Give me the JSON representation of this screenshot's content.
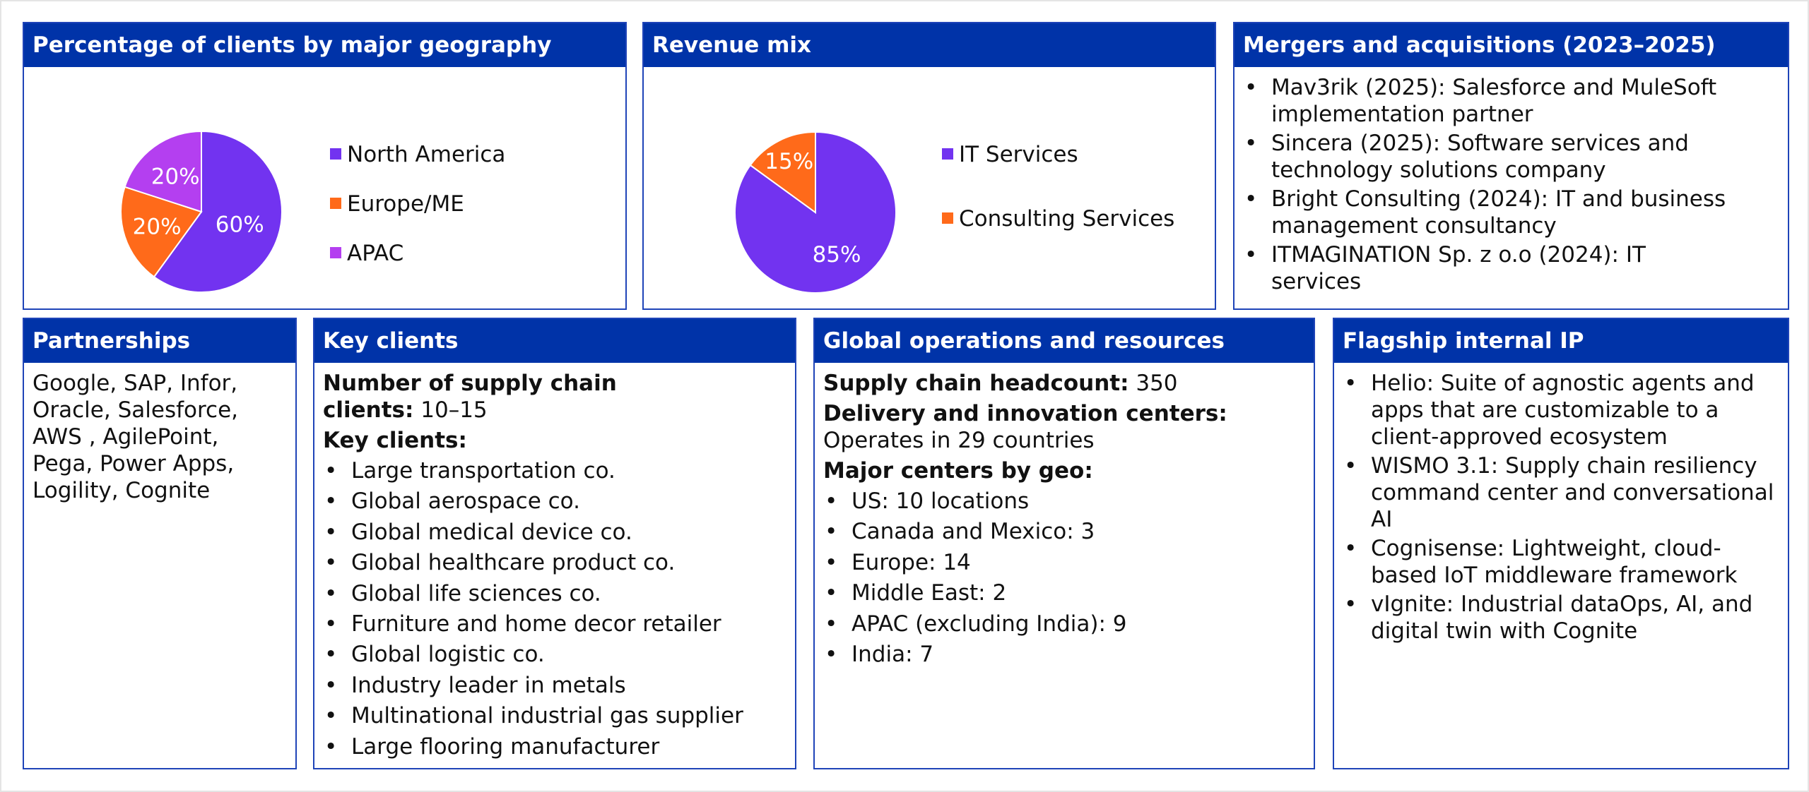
{
  "colors": {
    "header": "#0033a8",
    "border": "#1f44b8",
    "purple": "#7233f0",
    "orange": "#ff6a1a",
    "magenta": "#b43ff0"
  },
  "geography": {
    "title": "Percentage of clients by major geography",
    "legend": [
      "North America",
      "Europe/ME",
      "APAC"
    ]
  },
  "revenue": {
    "title": "Revenue mix",
    "legend": [
      "IT Services",
      "Consulting Services"
    ]
  },
  "chart_data": [
    {
      "type": "pie",
      "title": "Percentage of clients by major geography",
      "categories": [
        "North America",
        "Europe/ME",
        "APAC"
      ],
      "values": [
        60,
        20,
        20
      ],
      "labels": [
        "60%",
        "20%",
        "20%"
      ],
      "colors": [
        "#7233f0",
        "#ff6a1a",
        "#b43ff0"
      ],
      "legend": "right"
    },
    {
      "type": "pie",
      "title": "Revenue mix",
      "categories": [
        "IT Services",
        "Consulting Services"
      ],
      "values": [
        85,
        15
      ],
      "labels": [
        "85%",
        "15%"
      ],
      "colors": [
        "#7233f0",
        "#ff6a1a"
      ],
      "legend": "right"
    }
  ],
  "ma": {
    "title": "Mergers and acquisitions (2023–2025)",
    "items": [
      [
        "Mav3rik (2025): Salesforce and MuleSoft",
        "implementation partner"
      ],
      [
        "Sincera (2025): Software services and",
        "technology solutions company"
      ],
      [
        "Bright Consulting (2024): IT and business",
        "management consultancy"
      ],
      [
        "ITMAGINATION Sp. z o.o (2024): IT",
        "services"
      ]
    ]
  },
  "partnerships": {
    "title": "Partnerships",
    "lines": [
      "Google, SAP, Infor,",
      "Oracle, Salesforce,",
      "AWS , AgilePoint,",
      "Pega, Power Apps,",
      "Logility, Cognite"
    ]
  },
  "key_clients": {
    "title": "Key clients",
    "count_label_1": "Number of supply chain",
    "count_label_2": "clients:",
    "count_value": " 10–15",
    "list_label": "Key clients:",
    "items": [
      "Large transportation co.",
      "Global aerospace co.",
      "Global medical device co.",
      "Global healthcare product co.",
      "Global life sciences co.",
      "Furniture and home decor retailer",
      "Global logistic co.",
      "Industry leader in metals",
      "Multinational industrial gas supplier",
      "Large flooring manufacturer"
    ]
  },
  "operations": {
    "title": "Global operations and resources",
    "headcount_label": "Supply chain headcount:",
    "headcount_value": " 350",
    "centers_label": "Delivery and innovation centers:",
    "centers_value": "Operates in 29 countries",
    "geo_label": "Major centers by geo:",
    "geo_items": [
      "US: 10 locations",
      "Canada and Mexico: 3",
      "Europe: 14",
      "Middle East: 2",
      "APAC (excluding India): 9",
      "India: 7"
    ]
  },
  "ip": {
    "title": "Flagship internal IP",
    "items": [
      [
        "Helio: Suite of agnostic agents and",
        "apps that are customizable to a",
        "client-approved ecosystem"
      ],
      [
        "WISMO 3.1: Supply chain resiliency",
        "command center and conversational",
        "AI"
      ],
      [
        "Cognisense: Lightweight, cloud-",
        "based IoT middleware framework"
      ],
      [
        "vIgnite: Industrial dataOps, AI, and",
        "digital twin with Cognite"
      ]
    ]
  }
}
